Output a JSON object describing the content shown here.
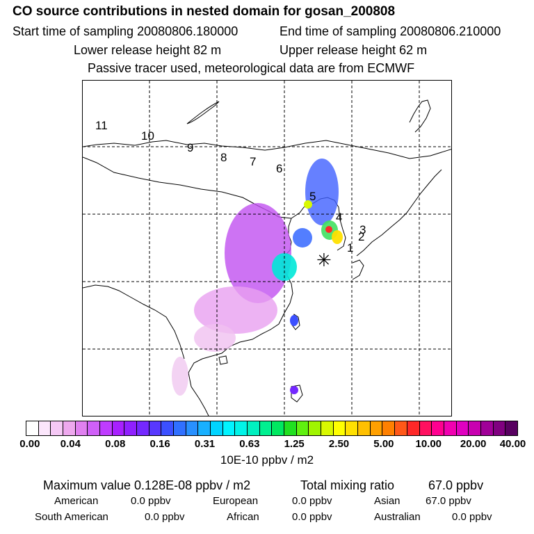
{
  "header": {
    "title": "CO  source contributions in nested domain for gosan_200808",
    "start_label": "Start time of sampling 20080806.180000",
    "end_label": "End time of sampling 20080806.210000",
    "lower_label": "Lower release height   82 m",
    "upper_label": "Upper release height   62 m",
    "tracer_note": "Passive tracer used, meteorological data are from ECMWF"
  },
  "map": {
    "trajectory_labels": [
      "1",
      "2",
      "3",
      "4",
      "5",
      "6",
      "7",
      "8",
      "9",
      "10",
      "11"
    ],
    "receptor_symbol": "✳"
  },
  "colorbar": {
    "ticks": [
      "0.00",
      "0.04",
      "0.08",
      "0.16",
      "0.31",
      "0.63",
      "1.25",
      "2.50",
      "5.00",
      "10.00",
      "20.00",
      "40.00"
    ],
    "colors": [
      "#ffffff",
      "#fbe6fb",
      "#f5c8f5",
      "#eea8ee",
      "#e080f0",
      "#d060f8",
      "#bf3cff",
      "#a820ff",
      "#9020ff",
      "#7428ff",
      "#5838ff",
      "#3c50ff",
      "#3070ff",
      "#2890ff",
      "#18b0ff",
      "#00d4ff",
      "#00f4ff",
      "#00f4e8",
      "#00f0c0",
      "#00f090",
      "#00e860",
      "#20e020",
      "#60f010",
      "#a0f400",
      "#d8f800",
      "#ffff00",
      "#ffe000",
      "#ffc000",
      "#ffa000",
      "#ff8000",
      "#ff5818",
      "#ff2828",
      "#ff1060",
      "#ff0090",
      "#f000b0",
      "#e000c0",
      "#c800b0",
      "#a00098",
      "#800080",
      "#580060"
    ],
    "unit_label": "10E-10 ppbv / m2"
  },
  "stats": {
    "max_label": "Maximum value  0.128E-08 ppbv / m2",
    "total_label": "Total mixing ratio",
    "total_value": "67.0 ppbv",
    "regions": [
      {
        "name": "American",
        "value": "0.0 ppbv"
      },
      {
        "name": "European",
        "value": "0.0 ppbv"
      },
      {
        "name": "Asian",
        "value": "67.0 ppbv"
      },
      {
        "name": "South American",
        "value": "0.0 ppbv"
      },
      {
        "name": "African",
        "value": "0.0 ppbv"
      },
      {
        "name": "Australian",
        "value": "0.0 ppbv"
      }
    ]
  }
}
